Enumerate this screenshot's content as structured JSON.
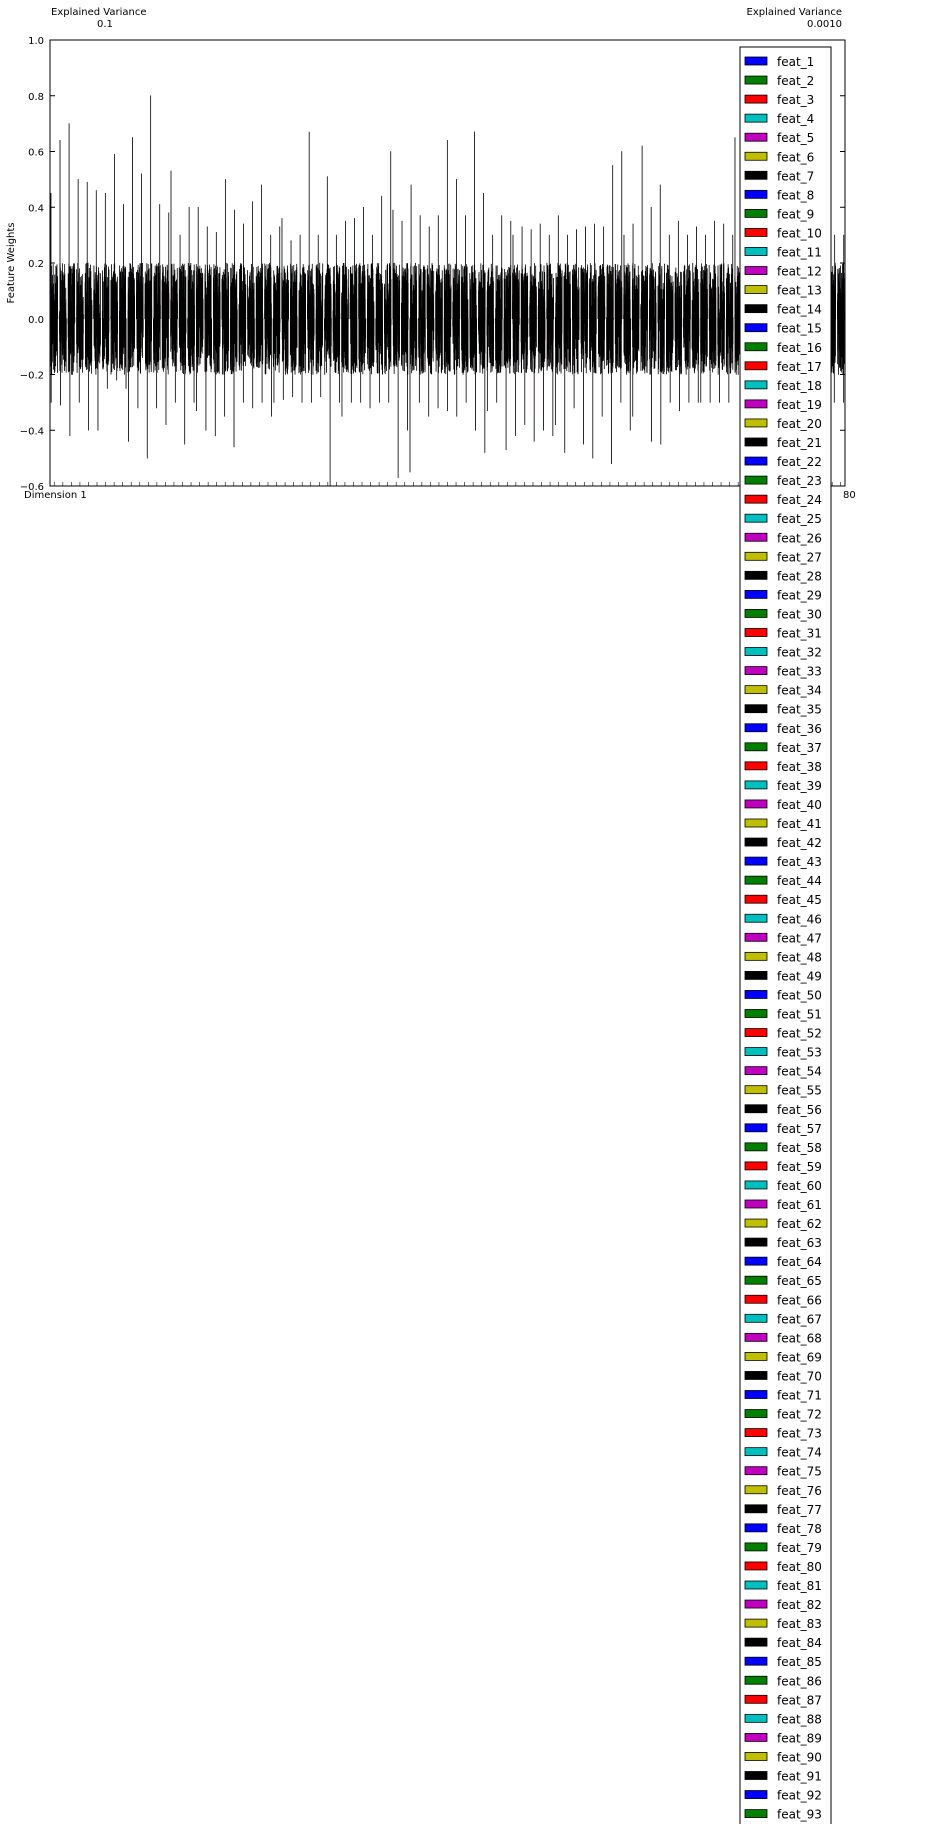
{
  "chart_data": {
    "type": "bar",
    "title": "",
    "xlabel": "",
    "ylabel": "Feature Weights",
    "ylim": [
      -0.6,
      1.0
    ],
    "yticks": [
      "1.0",
      "0.8",
      "0.6",
      "0.4",
      "0.2",
      "0.0",
      "−0.2",
      "−0.4",
      "−0.6"
    ],
    "ytick_values": [
      1.0,
      0.8,
      0.6,
      0.4,
      0.2,
      0.0,
      -0.2,
      -0.4,
      -0.6
    ],
    "grid": false,
    "legend_position": "right",
    "legend_frame": true,
    "num_dimensions": 93,
    "xtick_first": "Dimension 1",
    "xtick_last_visible": "80",
    "top_annotation": "Explained Variance",
    "top_first_value": "0.1",
    "top_last_value": "0.0010",
    "series_colors": [
      "#0000ff",
      "#008000",
      "#ff0000",
      "#00bfbf",
      "#bf00bf",
      "#bfbf00",
      "#000000"
    ],
    "series_names": [
      "feat_1",
      "feat_2",
      "feat_3",
      "feat_4",
      "feat_5",
      "feat_6",
      "feat_7",
      "feat_8",
      "feat_9",
      "feat_10",
      "feat_11",
      "feat_12",
      "feat_13",
      "feat_14",
      "feat_15",
      "feat_16",
      "feat_17",
      "feat_18",
      "feat_19",
      "feat_20",
      "feat_21",
      "feat_22",
      "feat_23",
      "feat_24",
      "feat_25",
      "feat_26",
      "feat_27",
      "feat_28",
      "feat_29",
      "feat_30",
      "feat_31",
      "feat_32",
      "feat_33",
      "feat_34",
      "feat_35",
      "feat_36",
      "feat_37",
      "feat_38",
      "feat_39",
      "feat_40",
      "feat_41",
      "feat_42",
      "feat_43",
      "feat_44",
      "feat_45",
      "feat_46",
      "feat_47",
      "feat_48",
      "feat_49",
      "feat_50",
      "feat_51",
      "feat_52",
      "feat_53",
      "feat_54",
      "feat_55",
      "feat_56",
      "feat_57",
      "feat_58",
      "feat_59",
      "feat_60",
      "feat_61",
      "feat_62",
      "feat_63",
      "feat_64",
      "feat_65",
      "feat_66",
      "feat_67",
      "feat_68",
      "feat_69",
      "feat_70",
      "feat_71",
      "feat_72",
      "feat_73",
      "feat_74",
      "feat_75",
      "feat_76",
      "feat_77",
      "feat_78",
      "feat_79",
      "feat_80",
      "feat_81",
      "feat_82",
      "feat_83",
      "feat_84",
      "feat_85",
      "feat_86",
      "feat_87",
      "feat_88",
      "feat_89",
      "feat_90",
      "feat_91",
      "feat_92",
      "feat_93"
    ],
    "dimension_max_weights": [
      0.45,
      0.64,
      0.7,
      0.5,
      0.49,
      0.46,
      0.45,
      0.59,
      0.41,
      0.65,
      0.52,
      0.8,
      0.41,
      0.38,
      0.53,
      0.3,
      0.4,
      0.4,
      0.33,
      0.31,
      0.5,
      0.39,
      0.34,
      0.42,
      0.48,
      0.3,
      0.33,
      0.36,
      0.28,
      0.3,
      0.67,
      0.3,
      0.51,
      0.3,
      0.35,
      0.36,
      0.4,
      0.3,
      0.44,
      0.6,
      0.39,
      0.35,
      0.48,
      0.37,
      0.33,
      0.37,
      0.64,
      0.5,
      0.37,
      0.67,
      0.45,
      0.3,
      0.37,
      0.35,
      0.3,
      0.33,
      0.32,
      0.34,
      0.3,
      0.37,
      0.3,
      0.32,
      0.33,
      0.34,
      0.33,
      0.55,
      0.6,
      0.3,
      0.34,
      0.62,
      0.4,
      0.48,
      0.3,
      0.35,
      0.3,
      0.33,
      0.3,
      0.35,
      0.34,
      0.3,
      0.65,
      0.3,
      0.33,
      0.3,
      0.3,
      0.3,
      0.3,
      0.3,
      0.3,
      0.3,
      0.3,
      0.3,
      0.3
    ],
    "dimension_min_weights": [
      -0.3,
      -0.31,
      -0.42,
      -0.3,
      -0.4,
      -0.4,
      -0.25,
      -0.22,
      -0.25,
      -0.44,
      -0.32,
      -0.5,
      -0.32,
      -0.38,
      -0.3,
      -0.45,
      -0.3,
      -0.33,
      -0.4,
      -0.42,
      -0.35,
      -0.46,
      -0.3,
      -0.32,
      -0.3,
      -0.35,
      -0.3,
      -0.29,
      -0.28,
      -0.3,
      -0.3,
      -0.28,
      -0.6,
      -0.3,
      -0.35,
      -0.3,
      -0.3,
      -0.32,
      -0.3,
      -0.3,
      -0.57,
      -0.4,
      -0.55,
      -0.3,
      -0.35,
      -0.32,
      -0.33,
      -0.35,
      -0.3,
      -0.4,
      -0.48,
      -0.33,
      -0.3,
      -0.47,
      -0.42,
      -0.38,
      -0.44,
      -0.4,
      -0.42,
      -0.38,
      -0.48,
      -0.32,
      -0.45,
      -0.5,
      -0.35,
      -0.52,
      -0.3,
      -0.4,
      -0.35,
      -0.52,
      -0.44,
      -0.45,
      -0.3,
      -0.33,
      -0.3,
      -0.3,
      -0.3,
      -0.3,
      -0.3,
      -0.3,
      -0.2,
      -0.3,
      -0.3,
      -0.3,
      -0.3,
      -0.3,
      -0.3,
      -0.3,
      -0.3,
      -0.3,
      -0.3,
      -0.3,
      -0.3
    ]
  }
}
